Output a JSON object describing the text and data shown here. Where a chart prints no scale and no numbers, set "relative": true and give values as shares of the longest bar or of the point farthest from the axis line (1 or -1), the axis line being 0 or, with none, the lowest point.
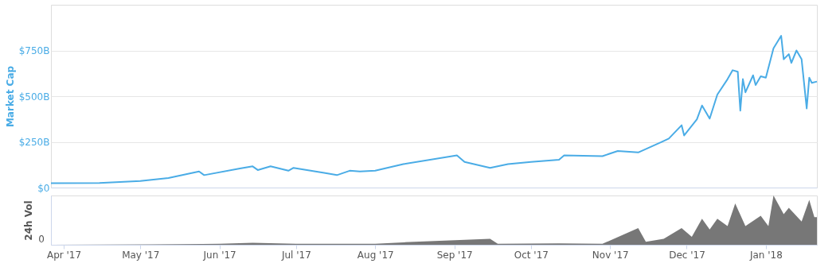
{
  "chart_data": [
    {
      "type": "line",
      "ylabel": "Market Cap",
      "xlim": [
        "2017-03-27",
        "2018-01-21"
      ],
      "ylim": [
        0,
        1000
      ],
      "yticks": [
        {
          "value": 0,
          "label": "$0"
        },
        {
          "value": 250,
          "label": "$250B"
        },
        {
          "value": 500,
          "label": "$500B"
        },
        {
          "value": 750,
          "label": "$750B"
        }
      ],
      "tick_labels": "y",
      "grid": "y",
      "marker": "none",
      "line_style": "solid",
      "x": [
        "2017-03-27",
        "2017-04-15",
        "2017-05-01",
        "2017-05-12",
        "2017-05-24",
        "2017-05-26",
        "2017-06-09",
        "2017-06-14",
        "2017-06-16",
        "2017-06-21",
        "2017-06-28",
        "2017-06-30",
        "2017-07-12",
        "2017-07-17",
        "2017-07-22",
        "2017-07-26",
        "2017-08-01",
        "2017-08-12",
        "2017-09-02",
        "2017-09-05",
        "2017-09-15",
        "2017-09-22",
        "2017-10-01",
        "2017-10-12",
        "2017-10-14",
        "2017-10-29",
        "2017-11-04",
        "2017-11-12",
        "2017-11-21",
        "2017-11-24",
        "2017-11-29",
        "2017-11-30",
        "2017-12-05",
        "2017-12-07",
        "2017-12-10",
        "2017-12-13",
        "2017-12-17",
        "2017-12-19",
        "2017-12-21",
        "2017-12-22",
        "2017-12-23",
        "2017-12-24",
        "2017-12-27",
        "2017-12-28",
        "2017-12-30",
        "2018-01-01",
        "2018-01-04",
        "2018-01-07",
        "2018-01-08",
        "2018-01-10",
        "2018-01-11",
        "2018-01-13",
        "2018-01-15",
        "2018-01-17",
        "2018-01-18",
        "2018-01-19",
        "2018-01-21"
      ],
      "series": [
        {
          "color": "#4aace6",
          "values": [
            24,
            25,
            36,
            52,
            88,
            68,
            104,
            116,
            96,
            116,
            92,
            108,
            80,
            68,
            92,
            88,
            92,
            128,
            176,
            140,
            108,
            128,
            140,
            152,
            176,
            172,
            200,
            192,
            248,
            268,
            341,
            285,
            373,
            449,
            377,
            509,
            593,
            642,
            634,
            421,
            593,
            521,
            614,
            561,
            609,
            601,
            762,
            830,
            702,
            730,
            682,
            750,
            702,
            433,
            601,
            573,
            580
          ]
        }
      ]
    },
    {
      "type": "area",
      "ylabel": "24h Vol",
      "relative": true,
      "annotations": [
        "0"
      ],
      "xlim": [
        "2017-03-27",
        "2018-01-21"
      ],
      "xticks": [
        {
          "value": "2017-04-01",
          "label": "Apr '17"
        },
        {
          "value": "2017-05-01",
          "label": "May '17"
        },
        {
          "value": "2017-06-01",
          "label": "Jun '17"
        },
        {
          "value": "2017-07-01",
          "label": "Jul '17"
        },
        {
          "value": "2017-08-01",
          "label": "Aug '17"
        },
        {
          "value": "2017-09-01",
          "label": "Sep '17"
        },
        {
          "value": "2017-10-01",
          "label": "Oct '17"
        },
        {
          "value": "2017-11-01",
          "label": "Nov '17"
        },
        {
          "value": "2017-12-01",
          "label": "Dec '17"
        },
        {
          "value": "2018-01-01",
          "label": "Jan '18"
        }
      ],
      "x": [
        "2017-03-27",
        "2017-05-05",
        "2017-06-01",
        "2017-06-14",
        "2017-07-01",
        "2017-08-01",
        "2017-08-12",
        "2017-09-15",
        "2017-09-18",
        "2017-10-12",
        "2017-10-29",
        "2017-11-12",
        "2017-11-15",
        "2017-11-22",
        "2017-11-29",
        "2017-12-03",
        "2017-12-07",
        "2017-12-10",
        "2017-12-13",
        "2017-12-17",
        "2017-12-20",
        "2017-12-24",
        "2017-12-30",
        "2018-01-02",
        "2018-01-04",
        "2018-01-08",
        "2018-01-10",
        "2018-01-15",
        "2018-01-18",
        "2018-01-20",
        "2018-01-21"
      ],
      "series": [
        {
          "color": "#777777",
          "values": [
            0,
            0.01,
            0.02,
            0.04,
            0.02,
            0.02,
            0.05,
            0.12,
            0.02,
            0.03,
            0.02,
            0.34,
            0.06,
            0.12,
            0.34,
            0.16,
            0.53,
            0.31,
            0.53,
            0.38,
            0.84,
            0.38,
            0.59,
            0.38,
            1,
            0.62,
            0.75,
            0.47,
            0.91,
            0.56,
            0.56
          ]
        }
      ]
    }
  ]
}
